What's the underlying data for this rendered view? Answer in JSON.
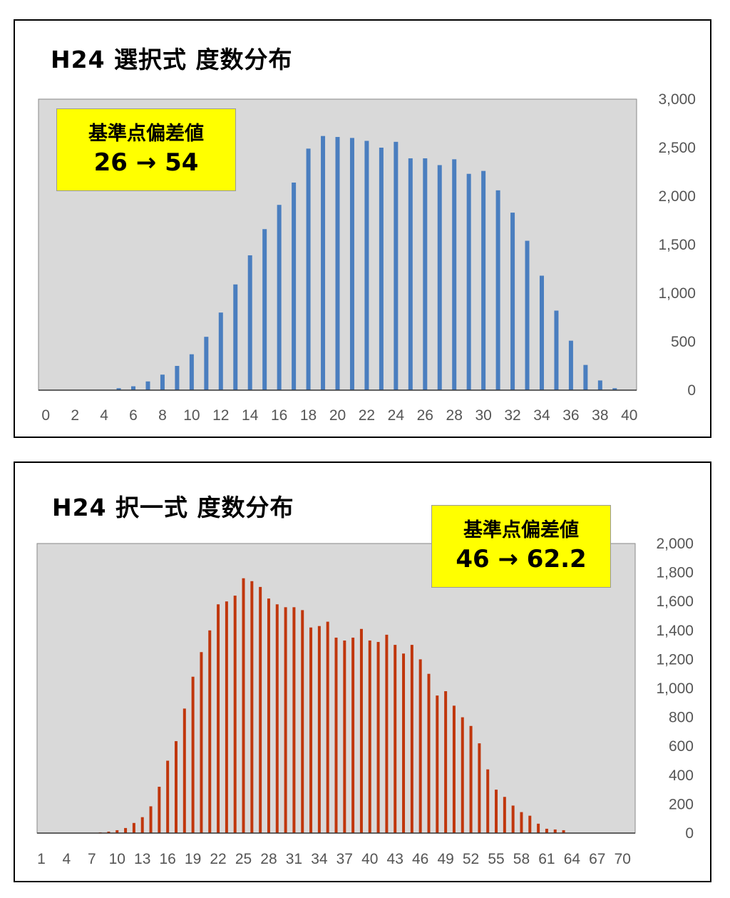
{
  "chart_data": [
    {
      "type": "bar",
      "title": "H24 選択式 度数分布",
      "callout": {
        "label": "基準点偏差値",
        "value": "26 → 54"
      },
      "bar_color": "#4a7ebf",
      "plot_background": "#d9d9d9",
      "grid": false,
      "ylim": [
        0,
        3000
      ],
      "yticks": [
        0,
        500,
        1000,
        1500,
        2000,
        2500,
        3000
      ],
      "ytick_labels": [
        "0",
        "500",
        "1,000",
        "1,500",
        "2,000",
        "2,500",
        "3,000"
      ],
      "xticks": [
        "0",
        "2",
        "4",
        "6",
        "8",
        "10",
        "12",
        "14",
        "16",
        "18",
        "20",
        "22",
        "24",
        "26",
        "28",
        "30",
        "32",
        "34",
        "36",
        "38",
        "40"
      ],
      "x": [
        0,
        1,
        2,
        3,
        4,
        5,
        6,
        7,
        8,
        9,
        10,
        11,
        12,
        13,
        14,
        15,
        16,
        17,
        18,
        19,
        20,
        21,
        22,
        23,
        24,
        25,
        26,
        27,
        28,
        29,
        30,
        31,
        32,
        33,
        34,
        35,
        36,
        37,
        38,
        39,
        40
      ],
      "values": [
        0,
        0,
        0,
        0,
        3,
        20,
        40,
        90,
        160,
        250,
        370,
        550,
        800,
        1090,
        1390,
        1660,
        1910,
        2140,
        2490,
        2620,
        2610,
        2600,
        2570,
        2500,
        2560,
        2390,
        2390,
        2320,
        2380,
        2230,
        2260,
        2060,
        1830,
        1540,
        1180,
        820,
        510,
        260,
        100,
        20,
        0
      ]
    },
    {
      "type": "bar",
      "title": "H24 択一式 度数分布",
      "callout": {
        "label": "基準点偏差値",
        "value": "46 → 62.2"
      },
      "bar_color": "#c0360c",
      "plot_background": "#d9d9d9",
      "grid": false,
      "ylim": [
        0,
        2000
      ],
      "yticks": [
        0,
        200,
        400,
        600,
        800,
        1000,
        1200,
        1400,
        1600,
        1800,
        2000
      ],
      "ytick_labels": [
        "0",
        "200",
        "400",
        "600",
        "800",
        "1,000",
        "1,200",
        "1,400",
        "1,600",
        "1,800",
        "2,000"
      ],
      "xticks": [
        "1",
        "4",
        "7",
        "10",
        "13",
        "16",
        "19",
        "22",
        "25",
        "28",
        "31",
        "34",
        "37",
        "40",
        "43",
        "46",
        "49",
        "52",
        "55",
        "58",
        "61",
        "64",
        "67",
        "70"
      ],
      "x": [
        1,
        2,
        3,
        4,
        5,
        6,
        7,
        8,
        9,
        10,
        11,
        12,
        13,
        14,
        15,
        16,
        17,
        18,
        19,
        20,
        21,
        22,
        23,
        24,
        25,
        26,
        27,
        28,
        29,
        30,
        31,
        32,
        33,
        34,
        35,
        36,
        37,
        38,
        39,
        40,
        41,
        42,
        43,
        44,
        45,
        46,
        47,
        48,
        49,
        50,
        51,
        52,
        53,
        54,
        55,
        56,
        57,
        58,
        59,
        60,
        61,
        62,
        63,
        64,
        65,
        66,
        67,
        68,
        69,
        70,
        71
      ],
      "values": [
        0,
        0,
        0,
        0,
        0,
        0,
        0,
        5,
        10,
        20,
        35,
        70,
        110,
        185,
        320,
        500,
        635,
        860,
        1080,
        1250,
        1400,
        1580,
        1600,
        1640,
        1760,
        1740,
        1700,
        1620,
        1580,
        1560,
        1560,
        1540,
        1420,
        1430,
        1460,
        1350,
        1330,
        1350,
        1410,
        1330,
        1320,
        1370,
        1300,
        1240,
        1300,
        1200,
        1100,
        950,
        980,
        880,
        800,
        740,
        620,
        440,
        300,
        250,
        190,
        145,
        120,
        65,
        30,
        25,
        20,
        0,
        0,
        0,
        0,
        0,
        0,
        0,
        0
      ]
    }
  ]
}
